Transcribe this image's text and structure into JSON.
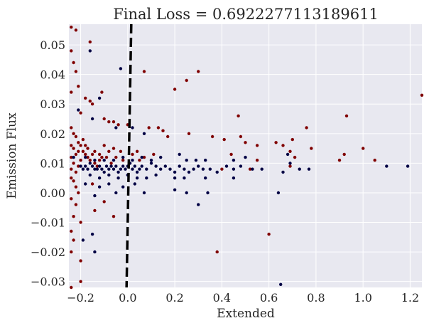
{
  "chart_data": {
    "type": "scatter",
    "title": "Final Loss = 0.6922277113189611",
    "xlabel": "Extended",
    "ylabel": "Emission Flux",
    "xlim": [
      -0.25,
      1.25
    ],
    "ylim": [
      -0.032,
      0.057
    ],
    "xticks": [
      -0.2,
      0.0,
      0.2,
      0.4,
      0.6,
      0.8,
      1.0,
      1.2
    ],
    "xtick_labels": [
      "−0.2",
      "0.0",
      "0.2",
      "0.4",
      "0.6",
      "0.8",
      "1.0",
      "1.2"
    ],
    "yticks": [
      -0.03,
      -0.02,
      -0.01,
      0.0,
      0.01,
      0.02,
      0.03,
      0.04,
      0.05
    ],
    "ytick_labels": [
      "−0.03",
      "−0.02",
      "−0.01",
      "0.00",
      "0.01",
      "0.02",
      "0.03",
      "0.04",
      "0.05"
    ],
    "grid": true,
    "background_color": "#e8e8f0",
    "grid_color": "#ffffff",
    "decision_boundary": {
      "style": "dashed",
      "color": "#000000",
      "points": [
        [
          0.015,
          0.057
        ],
        [
          -0.005,
          -0.032
        ]
      ]
    },
    "series": [
      {
        "color": "#800000",
        "points": [
          [
            -0.24,
            0.056
          ],
          [
            -0.22,
            0.055
          ],
          [
            -0.16,
            0.051
          ],
          [
            -0.24,
            0.048
          ],
          [
            -0.23,
            0.044
          ],
          [
            -0.22,
            0.041
          ],
          [
            0.07,
            0.041
          ],
          [
            0.3,
            0.041
          ],
          [
            0.25,
            0.038
          ],
          [
            0.2,
            0.035
          ],
          [
            1.25,
            0.033
          ],
          [
            -0.24,
            0.034
          ],
          [
            -0.21,
            0.036
          ],
          [
            -0.18,
            0.032
          ],
          [
            -0.16,
            0.031
          ],
          [
            -0.15,
            0.03
          ],
          [
            -0.11,
            0.034
          ],
          [
            -0.2,
            0.027
          ],
          [
            -0.1,
            0.025
          ],
          [
            -0.08,
            0.024
          ],
          [
            -0.06,
            0.024
          ],
          [
            -0.04,
            0.023
          ],
          [
            0.0,
            0.023
          ],
          [
            0.09,
            0.022
          ],
          [
            0.13,
            0.022
          ],
          [
            0.15,
            0.021
          ],
          [
            0.17,
            0.019
          ],
          [
            0.26,
            0.02
          ],
          [
            0.36,
            0.019
          ],
          [
            0.41,
            0.018
          ],
          [
            0.47,
            0.026
          ],
          [
            0.48,
            0.019
          ],
          [
            0.5,
            0.017
          ],
          [
            0.55,
            0.016
          ],
          [
            0.63,
            0.017
          ],
          [
            0.66,
            0.016
          ],
          [
            0.7,
            0.018
          ],
          [
            0.76,
            0.022
          ],
          [
            0.78,
            0.015
          ],
          [
            0.93,
            0.026
          ],
          [
            1.0,
            0.015
          ],
          [
            1.05,
            0.011
          ],
          [
            0.92,
            0.013
          ],
          [
            0.9,
            0.011
          ],
          [
            0.55,
            0.011
          ],
          [
            0.44,
            0.013
          ],
          [
            0.4,
            0.008
          ],
          [
            0.52,
            0.008
          ],
          [
            0.69,
            0.009
          ],
          [
            0.71,
            0.012
          ],
          [
            0.69,
            0.014
          ],
          [
            -0.24,
            0.022
          ],
          [
            -0.23,
            0.02
          ],
          [
            -0.22,
            0.019
          ],
          [
            -0.21,
            0.017
          ],
          [
            -0.2,
            0.016
          ],
          [
            -0.19,
            0.014
          ],
          [
            -0.18,
            0.013
          ],
          [
            -0.17,
            0.012
          ],
          [
            -0.16,
            0.011
          ],
          [
            -0.14,
            0.01
          ],
          [
            -0.13,
            0.009
          ],
          [
            -0.12,
            0.011
          ],
          [
            -0.24,
            0.016
          ],
          [
            -0.24,
            0.012
          ],
          [
            -0.24,
            0.008
          ],
          [
            -0.23,
            0.015
          ],
          [
            -0.23,
            0.01
          ],
          [
            -0.22,
            0.013
          ],
          [
            -0.22,
            0.007
          ],
          [
            -0.21,
            0.014
          ],
          [
            -0.21,
            0.009
          ],
          [
            -0.2,
            0.011
          ],
          [
            -0.19,
            0.018
          ],
          [
            -0.18,
            0.016
          ],
          [
            -0.17,
            0.015
          ],
          [
            -0.15,
            0.013
          ],
          [
            -0.14,
            0.014
          ],
          [
            -0.12,
            0.013
          ],
          [
            -0.11,
            0.012
          ],
          [
            -0.1,
            0.016
          ],
          [
            -0.09,
            0.012
          ],
          [
            -0.08,
            0.014
          ],
          [
            -0.07,
            0.01
          ],
          [
            -0.06,
            0.015
          ],
          [
            -0.05,
            0.012
          ],
          [
            -0.03,
            0.014
          ],
          [
            -0.02,
            0.011
          ],
          [
            0.02,
            0.013
          ],
          [
            0.04,
            0.014
          ],
          [
            0.05,
            0.011
          ],
          [
            0.07,
            0.012
          ],
          [
            0.11,
            0.013
          ],
          [
            -0.24,
            0.005
          ],
          [
            -0.23,
            0.004
          ],
          [
            -0.22,
            0.002
          ],
          [
            -0.21,
            0.0
          ],
          [
            -0.24,
            -0.002
          ],
          [
            -0.23,
            -0.008
          ],
          [
            -0.2,
            -0.01
          ],
          [
            -0.22,
            -0.004
          ],
          [
            -0.24,
            -0.013
          ],
          [
            -0.23,
            -0.016
          ],
          [
            -0.24,
            -0.02
          ],
          [
            -0.2,
            -0.023
          ],
          [
            -0.24,
            -0.032
          ],
          [
            -0.2,
            -0.03
          ],
          [
            -0.14,
            -0.006
          ],
          [
            -0.1,
            -0.003
          ],
          [
            -0.06,
            -0.008
          ],
          [
            -0.15,
            0.003
          ],
          [
            0.38,
            -0.02
          ],
          [
            0.6,
            -0.014
          ]
        ]
      },
      {
        "color": "#000044",
        "points": [
          [
            -0.16,
            0.048
          ],
          [
            -0.03,
            0.042
          ],
          [
            -0.12,
            0.032
          ],
          [
            -0.21,
            0.028
          ],
          [
            -0.15,
            0.025
          ],
          [
            -0.05,
            0.022
          ],
          [
            0.02,
            0.022
          ],
          [
            0.07,
            0.02
          ],
          [
            -0.23,
            0.012
          ],
          [
            -0.2,
            0.009
          ],
          [
            -0.19,
            0.008
          ],
          [
            -0.18,
            0.009
          ],
          [
            -0.17,
            0.008
          ],
          [
            -0.16,
            0.01
          ],
          [
            -0.15,
            0.009
          ],
          [
            -0.14,
            0.008
          ],
          [
            -0.13,
            0.008
          ],
          [
            -0.12,
            0.009
          ],
          [
            -0.11,
            0.008
          ],
          [
            -0.1,
            0.007
          ],
          [
            -0.09,
            0.009
          ],
          [
            -0.08,
            0.008
          ],
          [
            -0.07,
            0.009
          ],
          [
            -0.06,
            0.008
          ],
          [
            -0.05,
            0.009
          ],
          [
            -0.04,
            0.007
          ],
          [
            -0.03,
            0.008
          ],
          [
            -0.02,
            0.009
          ],
          [
            -0.01,
            0.008
          ],
          [
            0.0,
            0.009
          ],
          [
            0.01,
            0.01
          ],
          [
            0.02,
            0.008
          ],
          [
            0.03,
            0.009
          ],
          [
            0.04,
            0.007
          ],
          [
            0.05,
            0.008
          ],
          [
            0.06,
            0.009
          ],
          [
            0.08,
            0.008
          ],
          [
            0.1,
            0.01
          ],
          [
            0.12,
            0.009
          ],
          [
            0.14,
            0.008
          ],
          [
            0.16,
            0.009
          ],
          [
            0.18,
            0.008
          ],
          [
            0.2,
            0.007
          ],
          [
            0.22,
            0.009
          ],
          [
            0.24,
            0.008
          ],
          [
            0.26,
            0.007
          ],
          [
            0.28,
            0.008
          ],
          [
            0.3,
            0.009
          ],
          [
            0.32,
            0.008
          ],
          [
            0.35,
            0.008
          ],
          [
            0.38,
            0.007
          ],
          [
            0.42,
            0.009
          ],
          [
            0.45,
            0.008
          ],
          [
            0.48,
            0.009
          ],
          [
            0.53,
            0.008
          ],
          [
            0.57,
            0.008
          ],
          [
            0.66,
            0.007
          ],
          [
            0.73,
            0.008
          ],
          [
            0.77,
            0.008
          ],
          [
            1.1,
            0.009
          ],
          [
            1.19,
            0.009
          ],
          [
            -0.18,
            0.012
          ],
          [
            -0.14,
            0.011
          ],
          [
            -0.1,
            0.011
          ],
          [
            -0.06,
            0.011
          ],
          [
            -0.02,
            0.012
          ],
          [
            0.02,
            0.011
          ],
          [
            0.06,
            0.012
          ],
          [
            0.1,
            0.011
          ],
          [
            0.14,
            0.012
          ],
          [
            0.22,
            0.013
          ],
          [
            0.25,
            0.011
          ],
          [
            0.29,
            0.011
          ],
          [
            0.33,
            0.011
          ],
          [
            0.45,
            0.011
          ],
          [
            0.5,
            0.012
          ],
          [
            0.69,
            0.01
          ],
          [
            0.68,
            0.013
          ],
          [
            -0.16,
            0.006
          ],
          [
            -0.12,
            0.005
          ],
          [
            -0.08,
            0.006
          ],
          [
            -0.04,
            0.005
          ],
          [
            0.0,
            0.006
          ],
          [
            0.04,
            0.005
          ],
          [
            0.08,
            0.005
          ],
          [
            0.12,
            0.006
          ],
          [
            0.2,
            0.005
          ],
          [
            0.24,
            0.005
          ],
          [
            0.33,
            0.005
          ],
          [
            0.45,
            0.005
          ],
          [
            -0.18,
            0.003
          ],
          [
            -0.12,
            0.002
          ],
          [
            -0.08,
            0.003
          ],
          [
            -0.02,
            0.002
          ],
          [
            0.03,
            0.003
          ],
          [
            -0.14,
            -0.001
          ],
          [
            -0.05,
            0.0
          ],
          [
            0.07,
            0.0
          ],
          [
            0.2,
            0.001
          ],
          [
            0.25,
            0.0
          ],
          [
            0.34,
            0.0
          ],
          [
            0.64,
            0.0
          ],
          [
            0.3,
            -0.004
          ],
          [
            -0.15,
            -0.014
          ],
          [
            -0.19,
            -0.016
          ],
          [
            -0.14,
            -0.02
          ],
          [
            0.65,
            -0.031
          ]
        ]
      }
    ]
  }
}
